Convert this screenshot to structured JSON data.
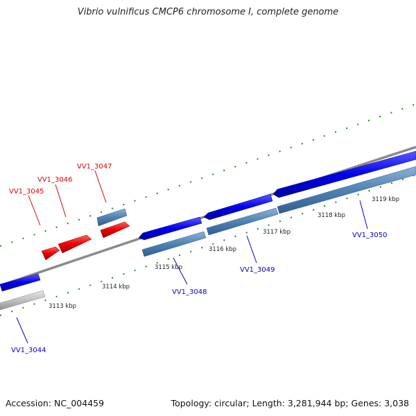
{
  "title": "Vibrio vulnificus CMCP6 chromosome I, complete genome",
  "footer": {
    "accession": "Accession: NC_004459",
    "summary": "Topology: circular; Length: 3,281,944 bp; Genes: 3,038"
  },
  "tick_labels": [
    "3113 kbp",
    "3114 kbp",
    "3115 kbp",
    "3116 kbp",
    "3117 kbp",
    "3118 kbp",
    "3119 kbp"
  ],
  "genes": [
    {
      "id": "VV1_3044",
      "strand": "reverse",
      "color": "#0000cc"
    },
    {
      "id": "VV1_3045",
      "strand": "forward",
      "color": "#dd0000"
    },
    {
      "id": "VV1_3046",
      "strand": "forward",
      "color": "#dd0000"
    },
    {
      "id": "VV1_3047",
      "strand": "forward",
      "color": "#dd0000"
    },
    {
      "id": "VV1_3048",
      "strand": "reverse",
      "color": "#0000cc"
    },
    {
      "id": "VV1_3049",
      "strand": "reverse",
      "color": "#0000cc"
    },
    {
      "id": "VV1_3050",
      "strand": "reverse",
      "color": "#0000cc"
    }
  ],
  "colors": {
    "backbone": "#8a8a8a",
    "tick_green": "#1a8a1a",
    "forward_label": "#dd0000",
    "reverse_label": "#0000cc",
    "feature_blue": "#0000ee",
    "feature_steel": "#4f7fb0",
    "feature_red": "#ee0000",
    "feature_grey": "#bbbbbb"
  }
}
